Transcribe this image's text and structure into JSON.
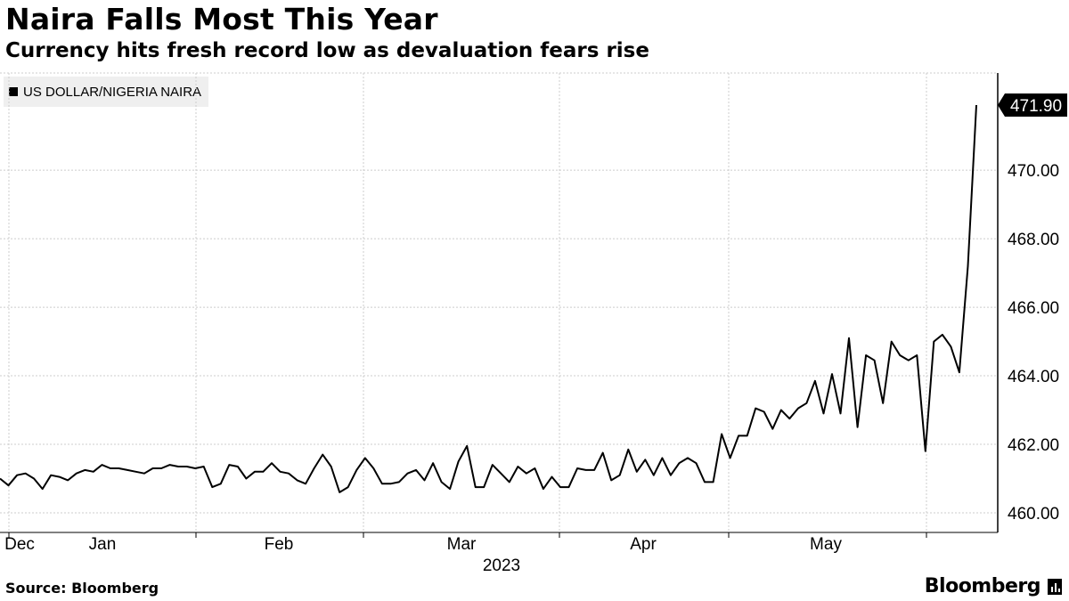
{
  "header": {
    "title": "Naira Falls Most This Year",
    "subtitle": "Currency hits fresh record low as devaluation fears rise"
  },
  "legend": {
    "label": "US DOLLAR/NIGERIA NAIRA"
  },
  "footer": {
    "source": "Source: Bloomberg",
    "brand": "Bloomberg"
  },
  "colors": {
    "line": "#000000",
    "grid": "#cccccc",
    "legend_bg": "#efefef",
    "label_bg": "#000000"
  },
  "chart_data": {
    "type": "line",
    "title": "Naira Falls Most This Year",
    "subtitle": "Currency hits fresh record low as devaluation fears rise",
    "year_label": "2023",
    "x_ticks": [
      "Dec",
      "Jan",
      "Feb",
      "Mar",
      "Apr",
      "May"
    ],
    "y_ticks": [
      "460.00",
      "462.00",
      "464.00",
      "466.00",
      "468.00",
      "470.00"
    ],
    "ylim": [
      459.7,
      473.0
    ],
    "grid": true,
    "last_value_label": "471.90",
    "series": [
      {
        "name": "US DOLLAR/NIGERIA NAIRA",
        "values": [
          461.0,
          460.8,
          461.1,
          461.15,
          461.0,
          460.7,
          461.1,
          461.05,
          460.95,
          461.15,
          461.25,
          461.2,
          461.4,
          461.3,
          461.3,
          461.25,
          461.2,
          461.15,
          461.3,
          461.3,
          461.4,
          461.35,
          461.35,
          461.3,
          461.35,
          460.75,
          460.85,
          461.4,
          461.35,
          461.0,
          461.2,
          461.2,
          461.45,
          461.2,
          461.15,
          460.95,
          460.85,
          461.3,
          461.7,
          461.35,
          460.6,
          460.75,
          461.25,
          461.6,
          461.3,
          460.85,
          460.85,
          460.9,
          461.15,
          461.25,
          460.95,
          461.45,
          460.9,
          460.7,
          461.5,
          461.95,
          460.75,
          460.75,
          461.4,
          461.15,
          460.9,
          461.35,
          461.15,
          461.3,
          460.7,
          461.05,
          460.75,
          460.75,
          461.3,
          461.25,
          461.25,
          461.75,
          460.95,
          461.1,
          461.85,
          461.2,
          461.55,
          461.1,
          461.6,
          461.1,
          461.45,
          461.6,
          461.45,
          460.9,
          460.9,
          462.3,
          461.6,
          462.25,
          462.25,
          463.05,
          462.95,
          462.45,
          463.0,
          462.75,
          463.05,
          463.2,
          463.85,
          462.9,
          464.05,
          462.9,
          465.1,
          462.5,
          464.6,
          464.45,
          463.2,
          465.0,
          464.6,
          464.45,
          464.6,
          461.8,
          465.0,
          465.2,
          464.85,
          464.1,
          467.2,
          471.9
        ]
      }
    ]
  }
}
